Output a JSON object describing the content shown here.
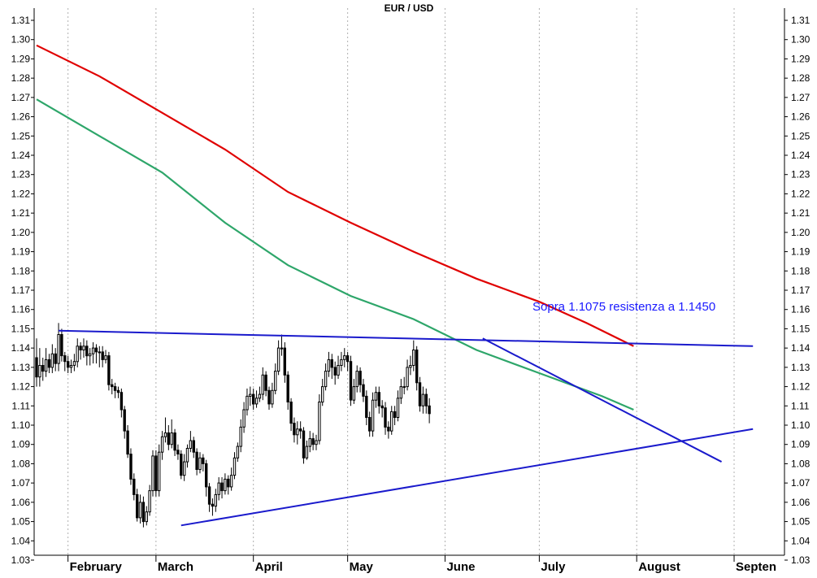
{
  "chart_data": {
    "type": "candlestick",
    "title": "EUR / USD",
    "y_ticks": [
      "1.03",
      "1.04",
      "1.05",
      "1.06",
      "1.07",
      "1.08",
      "1.09",
      "1.10",
      "1.11",
      "1.12",
      "1.13",
      "1.14",
      "1.15",
      "1.16",
      "1.17",
      "1.18",
      "1.19",
      "1.20",
      "1.21",
      "1.22",
      "1.23",
      "1.24",
      "1.25",
      "1.26",
      "1.27",
      "1.28",
      "1.29",
      "1.30",
      "1.31"
    ],
    "ylim": [
      1.02,
      1.316
    ],
    "x_day_range": [
      0,
      200
    ],
    "x_ticks": [
      {
        "label": "February",
        "day": 10
      },
      {
        "label": "March",
        "day": 38
      },
      {
        "label": "April",
        "day": 69
      },
      {
        "label": "May",
        "day": 99
      },
      {
        "label": "June",
        "day": 130
      },
      {
        "label": "July",
        "day": 160
      },
      {
        "label": "August",
        "day": 191
      },
      {
        "label": "Septen",
        "day": 222
      }
    ],
    "annotation": "Sopra 1.1075 resistenza a 1.1450",
    "colors": {
      "candle_up": "#ffffff",
      "candle_down": "#000000",
      "ma_red": "#e00000",
      "ma_green": "#2ea66a",
      "trendline": "#1a1acc",
      "grid": "#b0b0b0"
    },
    "moving_averages": [
      {
        "color": "red",
        "points": [
          [
            0,
            1.297
          ],
          [
            20,
            1.281
          ],
          [
            40,
            1.262
          ],
          [
            60,
            1.243
          ],
          [
            80,
            1.221
          ],
          [
            100,
            1.205
          ],
          [
            120,
            1.19
          ],
          [
            140,
            1.176
          ],
          [
            160,
            1.164
          ],
          [
            175,
            1.153
          ],
          [
            190,
            1.141
          ]
        ]
      },
      {
        "color": "green",
        "points": [
          [
            0,
            1.269
          ],
          [
            20,
            1.25
          ],
          [
            40,
            1.231
          ],
          [
            60,
            1.205
          ],
          [
            80,
            1.183
          ],
          [
            100,
            1.167
          ],
          [
            120,
            1.155
          ],
          [
            140,
            1.139
          ],
          [
            160,
            1.127
          ],
          [
            180,
            1.115
          ],
          [
            190,
            1.108
          ]
        ]
      }
    ],
    "trendlines": [
      {
        "points": [
          [
            7,
            1.149
          ],
          [
            228,
            1.141
          ]
        ]
      },
      {
        "points": [
          [
            46,
            1.048
          ],
          [
            228,
            1.098
          ]
        ]
      },
      {
        "points": [
          [
            142,
            1.145
          ],
          [
            218,
            1.081
          ]
        ]
      }
    ],
    "candles": [
      [
        0,
        1.135,
        1.125,
        1.145,
        1.12
      ],
      [
        1,
        1.125,
        1.131,
        1.14,
        1.12
      ],
      [
        2,
        1.131,
        1.128,
        1.135,
        1.123
      ],
      [
        3,
        1.128,
        1.134,
        1.14,
        1.125
      ],
      [
        4,
        1.134,
        1.13,
        1.137,
        1.127
      ],
      [
        5,
        1.13,
        1.137,
        1.142,
        1.127
      ],
      [
        6,
        1.137,
        1.132,
        1.14,
        1.128
      ],
      [
        7,
        1.132,
        1.147,
        1.153,
        1.128
      ],
      [
        8,
        1.147,
        1.136,
        1.15,
        1.133
      ],
      [
        9,
        1.136,
        1.133,
        1.138,
        1.128
      ],
      [
        10,
        1.133,
        1.13,
        1.136,
        1.127
      ],
      [
        11,
        1.13,
        1.131,
        1.134,
        1.127
      ],
      [
        12,
        1.131,
        1.133,
        1.137,
        1.128
      ],
      [
        13,
        1.133,
        1.141,
        1.145,
        1.13
      ],
      [
        14,
        1.141,
        1.139,
        1.143,
        1.134
      ],
      [
        15,
        1.139,
        1.141,
        1.145,
        1.135
      ],
      [
        16,
        1.141,
        1.136,
        1.144,
        1.131
      ],
      [
        17,
        1.136,
        1.137,
        1.14,
        1.131
      ],
      [
        18,
        1.137,
        1.14,
        1.143,
        1.132
      ],
      [
        19,
        1.14,
        1.138,
        1.142,
        1.132
      ],
      [
        20,
        1.138,
        1.138,
        1.141,
        1.13
      ],
      [
        21,
        1.138,
        1.134,
        1.141,
        1.13
      ],
      [
        22,
        1.134,
        1.136,
        1.139,
        1.132
      ],
      [
        23,
        1.136,
        1.121,
        1.138,
        1.118
      ],
      [
        24,
        1.121,
        1.12,
        1.124,
        1.116
      ],
      [
        25,
        1.12,
        1.118,
        1.122,
        1.114
      ],
      [
        26,
        1.118,
        1.117,
        1.12,
        1.114
      ],
      [
        27,
        1.117,
        1.108,
        1.119,
        1.104
      ],
      [
        28,
        1.108,
        1.097,
        1.11,
        1.093
      ],
      [
        29,
        1.097,
        1.085,
        1.1,
        1.083
      ],
      [
        30,
        1.085,
        1.072,
        1.088,
        1.069
      ],
      [
        31,
        1.072,
        1.064,
        1.075,
        1.061
      ],
      [
        32,
        1.064,
        1.052,
        1.067,
        1.05
      ],
      [
        33,
        1.052,
        1.06,
        1.064,
        1.049
      ],
      [
        34,
        1.06,
        1.05,
        1.063,
        1.047
      ],
      [
        35,
        1.05,
        1.055,
        1.058,
        1.048
      ],
      [
        36,
        1.055,
        1.066,
        1.069,
        1.053
      ],
      [
        37,
        1.066,
        1.084,
        1.087,
        1.063
      ],
      [
        38,
        1.084,
        1.066,
        1.087,
        1.063
      ],
      [
        39,
        1.066,
        1.086,
        1.09,
        1.063
      ],
      [
        40,
        1.086,
        1.094,
        1.097,
        1.082
      ],
      [
        41,
        1.094,
        1.096,
        1.104,
        1.091
      ],
      [
        42,
        1.096,
        1.09,
        1.1,
        1.087
      ],
      [
        43,
        1.09,
        1.096,
        1.103,
        1.088
      ],
      [
        44,
        1.096,
        1.087,
        1.098,
        1.084
      ],
      [
        45,
        1.087,
        1.085,
        1.09,
        1.082
      ],
      [
        46,
        1.085,
        1.074,
        1.087,
        1.072
      ],
      [
        47,
        1.074,
        1.081,
        1.085,
        1.071
      ],
      [
        48,
        1.081,
        1.088,
        1.09,
        1.078
      ],
      [
        49,
        1.088,
        1.092,
        1.097,
        1.086
      ],
      [
        50,
        1.092,
        1.086,
        1.094,
        1.083
      ],
      [
        51,
        1.086,
        1.077,
        1.088,
        1.074
      ],
      [
        52,
        1.077,
        1.083,
        1.086,
        1.075
      ],
      [
        53,
        1.083,
        1.08,
        1.085,
        1.076
      ],
      [
        54,
        1.08,
        1.068,
        1.082,
        1.063
      ],
      [
        55,
        1.068,
        1.059,
        1.07,
        1.055
      ],
      [
        56,
        1.059,
        1.058,
        1.062,
        1.053
      ],
      [
        57,
        1.058,
        1.064,
        1.067,
        1.055
      ],
      [
        58,
        1.064,
        1.07,
        1.073,
        1.061
      ],
      [
        59,
        1.07,
        1.066,
        1.073,
        1.062
      ],
      [
        60,
        1.066,
        1.072,
        1.075,
        1.064
      ],
      [
        61,
        1.072,
        1.068,
        1.074,
        1.064
      ],
      [
        62,
        1.068,
        1.074,
        1.078,
        1.066
      ],
      [
        63,
        1.074,
        1.083,
        1.086,
        1.072
      ],
      [
        64,
        1.083,
        1.089,
        1.091,
        1.081
      ],
      [
        65,
        1.089,
        1.099,
        1.103,
        1.086
      ],
      [
        66,
        1.099,
        1.108,
        1.112,
        1.096
      ],
      [
        67,
        1.108,
        1.115,
        1.119,
        1.105
      ],
      [
        68,
        1.115,
        1.116,
        1.12,
        1.11
      ],
      [
        69,
        1.116,
        1.111,
        1.119,
        1.108
      ],
      [
        70,
        1.111,
        1.114,
        1.118,
        1.109
      ],
      [
        71,
        1.114,
        1.116,
        1.12,
        1.112
      ],
      [
        72,
        1.116,
        1.126,
        1.13,
        1.113
      ],
      [
        73,
        1.126,
        1.118,
        1.128,
        1.115
      ],
      [
        74,
        1.118,
        1.111,
        1.12,
        1.108
      ],
      [
        75,
        1.111,
        1.118,
        1.122,
        1.109
      ],
      [
        76,
        1.118,
        1.128,
        1.132,
        1.116
      ],
      [
        77,
        1.128,
        1.14,
        1.144,
        1.126
      ],
      [
        78,
        1.14,
        1.14,
        1.147,
        1.136
      ],
      [
        79,
        1.14,
        1.126,
        1.143,
        1.122
      ],
      [
        80,
        1.126,
        1.112,
        1.128,
        1.108
      ],
      [
        81,
        1.112,
        1.101,
        1.114,
        1.097
      ],
      [
        82,
        1.101,
        1.095,
        1.104,
        1.091
      ],
      [
        83,
        1.095,
        1.098,
        1.102,
        1.09
      ],
      [
        84,
        1.098,
        1.097,
        1.102,
        1.093
      ],
      [
        85,
        1.097,
        1.083,
        1.099,
        1.08
      ],
      [
        86,
        1.083,
        1.089,
        1.092,
        1.082
      ],
      [
        87,
        1.089,
        1.093,
        1.097,
        1.086
      ],
      [
        88,
        1.093,
        1.09,
        1.096,
        1.087
      ],
      [
        89,
        1.09,
        1.092,
        1.095,
        1.087
      ],
      [
        90,
        1.092,
        1.112,
        1.116,
        1.09
      ],
      [
        91,
        1.112,
        1.12,
        1.124,
        1.11
      ],
      [
        92,
        1.12,
        1.128,
        1.132,
        1.118
      ],
      [
        93,
        1.128,
        1.134,
        1.138,
        1.125
      ],
      [
        94,
        1.134,
        1.13,
        1.137,
        1.124
      ],
      [
        95,
        1.13,
        1.126,
        1.133,
        1.121
      ],
      [
        96,
        1.126,
        1.131,
        1.136,
        1.124
      ],
      [
        97,
        1.131,
        1.134,
        1.138,
        1.128
      ],
      [
        98,
        1.134,
        1.136,
        1.14,
        1.13
      ],
      [
        99,
        1.136,
        1.133,
        1.138,
        1.128
      ],
      [
        100,
        1.133,
        1.113,
        1.136,
        1.11
      ],
      [
        101,
        1.113,
        1.12,
        1.124,
        1.111
      ],
      [
        102,
        1.12,
        1.128,
        1.131,
        1.117
      ],
      [
        103,
        1.128,
        1.121,
        1.13,
        1.117
      ],
      [
        104,
        1.121,
        1.115,
        1.124,
        1.112
      ],
      [
        105,
        1.115,
        1.104,
        1.118,
        1.1
      ],
      [
        106,
        1.104,
        1.097,
        1.107,
        1.094
      ],
      [
        107,
        1.097,
        1.113,
        1.117,
        1.094
      ],
      [
        108,
        1.113,
        1.117,
        1.12,
        1.109
      ],
      [
        109,
        1.117,
        1.11,
        1.12,
        1.106
      ],
      [
        110,
        1.11,
        1.109,
        1.113,
        1.104
      ],
      [
        111,
        1.109,
        1.099,
        1.112,
        1.095
      ],
      [
        112,
        1.099,
        1.097,
        1.102,
        1.093
      ],
      [
        113,
        1.097,
        1.107,
        1.11,
        1.095
      ],
      [
        114,
        1.107,
        1.104,
        1.11,
        1.1
      ],
      [
        115,
        1.104,
        1.114,
        1.118,
        1.102
      ],
      [
        116,
        1.114,
        1.12,
        1.124,
        1.111
      ],
      [
        117,
        1.12,
        1.12,
        1.125,
        1.116
      ],
      [
        118,
        1.12,
        1.13,
        1.134,
        1.118
      ],
      [
        119,
        1.13,
        1.131,
        1.136,
        1.126
      ],
      [
        120,
        1.131,
        1.139,
        1.144,
        1.128
      ],
      [
        121,
        1.139,
        1.122,
        1.141,
        1.118
      ],
      [
        122,
        1.122,
        1.11,
        1.125,
        1.107
      ],
      [
        123,
        1.11,
        1.116,
        1.12,
        1.106
      ],
      [
        124,
        1.116,
        1.11,
        1.119,
        1.106
      ],
      [
        125,
        1.11,
        1.106,
        1.114,
        1.101
      ]
    ]
  }
}
